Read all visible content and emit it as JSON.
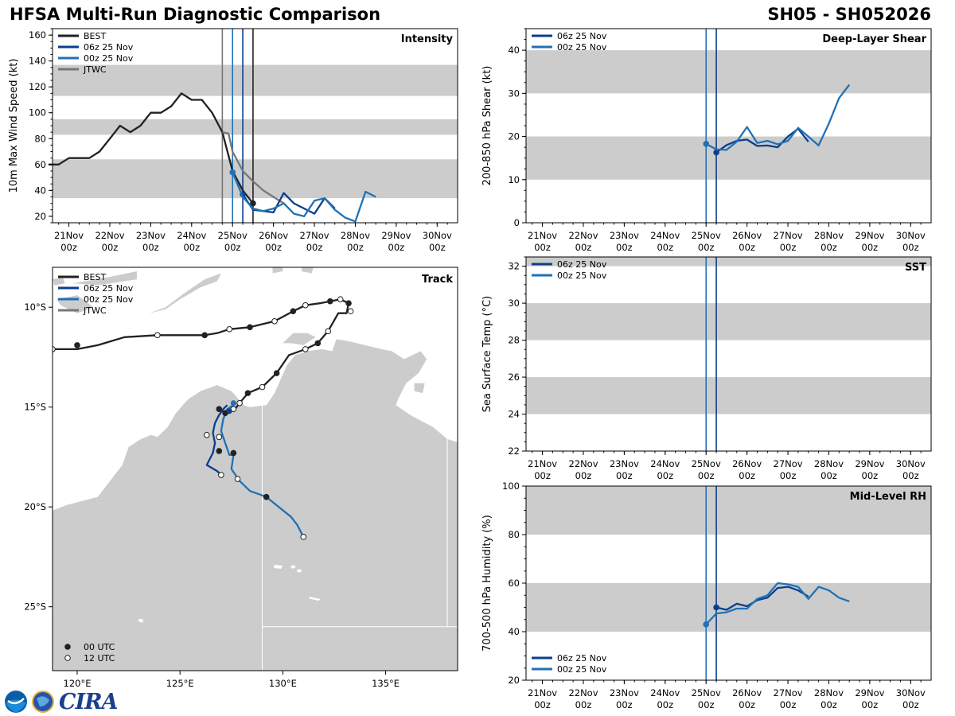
{
  "header": {
    "title": "HFSA Multi-Run Diagnostic Comparison",
    "storm": "SH05 - SH052026"
  },
  "logos": {
    "noaa": "NOAA",
    "cira": "CIRA"
  },
  "colors": {
    "best": "#222222",
    "run06": "#0b3f8c",
    "run00": "#2171b5",
    "jtwc": "#777777",
    "band": "#cccccc",
    "land": "#cccccc"
  },
  "time_axis": {
    "labels": [
      "21Nov",
      "22Nov",
      "23Nov",
      "24Nov",
      "25Nov",
      "26Nov",
      "27Nov",
      "28Nov",
      "29Nov",
      "30Nov"
    ],
    "sub": "00z",
    "range": [
      20.6,
      30.5
    ]
  },
  "chart_data": [
    {
      "id": "intensity",
      "type": "line",
      "title": "Intensity",
      "ylabel": "10m Max Wind Speed (kt)",
      "ylim": [
        15,
        165
      ],
      "yticks": [
        20,
        40,
        60,
        80,
        100,
        120,
        140,
        160
      ],
      "bands": [
        [
          34,
          64
        ],
        [
          83,
          95
        ],
        [
          113,
          137
        ]
      ],
      "vlines": [
        {
          "x": 24.75,
          "color": "jtwc"
        },
        {
          "x": 25.0,
          "color": "run00"
        },
        {
          "x": 25.25,
          "color": "run06"
        },
        {
          "x": 25.5,
          "color": "best"
        }
      ],
      "legend": [
        "BEST",
        "06z 25 Nov",
        "00z 25 Nov",
        "JTWC"
      ],
      "series": [
        {
          "name": "BEST",
          "color": "best",
          "x": [
            20.5,
            20.75,
            21,
            21.25,
            21.5,
            21.75,
            22,
            22.25,
            22.5,
            22.75,
            23,
            23.25,
            23.5,
            23.75,
            24,
            24.25,
            24.5,
            24.75,
            25,
            25.25,
            25.5
          ],
          "y": [
            60,
            60,
            65,
            65,
            65,
            70,
            80,
            90,
            85,
            90,
            100,
            100,
            105,
            115,
            110,
            110,
            100,
            85,
            55,
            40,
            30
          ],
          "marker": 25.5
        },
        {
          "name": "JTWC",
          "color": "jtwc",
          "x": [
            24.75,
            24.9,
            25,
            25.25,
            25.5,
            25.75,
            26,
            26.25
          ],
          "y": [
            85,
            84,
            70,
            55,
            47,
            40,
            35,
            30
          ]
        },
        {
          "name": "06z 25 Nov",
          "color": "run06",
          "x": [
            25.25,
            25.5,
            25.75,
            26,
            26.25,
            26.5,
            26.75,
            27,
            27.25,
            27.5
          ],
          "y": [
            37,
            25,
            24,
            23,
            38,
            30,
            26,
            22,
            34,
            26
          ],
          "marker": 25.25
        },
        {
          "name": "00z 25 Nov",
          "color": "run00",
          "x": [
            25,
            25.25,
            25.5,
            25.75,
            26,
            26.25,
            26.5,
            26.75,
            27,
            27.25,
            27.5,
            27.75,
            28,
            28.25,
            28.5
          ],
          "y": [
            54,
            35,
            26,
            24,
            26,
            30,
            22,
            20,
            32,
            34,
            25,
            19,
            16,
            39,
            35
          ],
          "marker": 25
        }
      ]
    },
    {
      "id": "shear",
      "type": "line",
      "title": "Deep-Layer Shear",
      "ylabel": "200-850 hPa Shear (kt)",
      "ylim": [
        0,
        45
      ],
      "yticks": [
        0,
        10,
        20,
        30,
        40
      ],
      "bands": [
        [
          10,
          20
        ],
        [
          30,
          40
        ]
      ],
      "vlines": [
        {
          "x": 25.0,
          "color": "run00"
        },
        {
          "x": 25.25,
          "color": "run06"
        }
      ],
      "legend": [
        "06z 25 Nov",
        "00z 25 Nov"
      ],
      "series": [
        {
          "name": "06z 25 Nov",
          "color": "run06",
          "x": [
            25.25,
            25.5,
            25.75,
            26,
            26.25,
            26.5,
            26.75,
            27,
            27.25,
            27.5
          ],
          "y": [
            16.3,
            18,
            19,
            19.3,
            17.8,
            17.9,
            17.5,
            20,
            21.8,
            18.8
          ],
          "marker": 25.25
        },
        {
          "name": "00z 25 Nov",
          "color": "run00",
          "x": [
            25,
            25.25,
            25.5,
            25.75,
            26,
            26.25,
            26.5,
            26.75,
            27,
            27.25,
            27.5,
            27.75,
            28,
            28.25,
            28.5
          ],
          "y": [
            18.3,
            17,
            16.9,
            18.8,
            22.2,
            18.5,
            19,
            18.2,
            19,
            22,
            20,
            17.9,
            23,
            28.9,
            32
          ],
          "marker": 25
        }
      ]
    },
    {
      "id": "sst",
      "type": "line",
      "title": "SST",
      "ylabel": "Sea Surface Temp (°C)",
      "ylim": [
        22,
        32.5
      ],
      "yticks": [
        22,
        24,
        26,
        28,
        30,
        32
      ],
      "bands": [
        [
          24,
          26
        ],
        [
          28,
          30
        ],
        [
          32,
          33
        ]
      ],
      "vlines": [
        {
          "x": 25.0,
          "color": "run00"
        },
        {
          "x": 25.25,
          "color": "run06"
        }
      ],
      "legend": [
        "06z 25 Nov",
        "00z 25 Nov"
      ],
      "series": []
    },
    {
      "id": "rh",
      "type": "line",
      "title": "Mid-Level RH",
      "ylabel": "700-500 hPa Humidity (%)",
      "ylim": [
        20,
        100
      ],
      "yticks": [
        20,
        40,
        60,
        80,
        100
      ],
      "bands": [
        [
          40,
          60
        ],
        [
          80,
          100
        ]
      ],
      "vlines": [
        {
          "x": 25.0,
          "color": "run00"
        },
        {
          "x": 25.25,
          "color": "run06"
        }
      ],
      "legend": [
        "06z 25 Nov",
        "00z 25 Nov"
      ],
      "legend_pos": "bottom-left",
      "series": [
        {
          "name": "06z 25 Nov",
          "color": "run06",
          "x": [
            25.25,
            25.5,
            25.75,
            26,
            26.25,
            26.5,
            26.75,
            27,
            27.25,
            27.5
          ],
          "y": [
            50,
            49,
            51.5,
            50.5,
            53,
            54,
            58,
            58.5,
            57,
            54.5
          ],
          "marker": 25.25
        },
        {
          "name": "00z 25 Nov",
          "color": "run00",
          "x": [
            25,
            25.25,
            25.5,
            25.75,
            26,
            26.25,
            26.5,
            26.75,
            27,
            27.25,
            27.5,
            27.75,
            28,
            28.25,
            28.5
          ],
          "y": [
            43,
            47.5,
            48,
            49.5,
            49.5,
            53.5,
            55,
            60,
            59.5,
            58.5,
            53.5,
            58.5,
            57,
            54,
            52.5
          ],
          "marker": 25
        }
      ]
    },
    {
      "id": "track",
      "type": "scatter",
      "title": "Track",
      "xlim": [
        118.8,
        138.5
      ],
      "ylim": [
        -28.2,
        -8.0
      ],
      "xticks": [
        120,
        125,
        130,
        135
      ],
      "xtick_labels": [
        "120°E",
        "125°E",
        "130°E",
        "135°E"
      ],
      "yticks": [
        -10,
        -15,
        -20,
        -25
      ],
      "ytick_labels": [
        "10°S",
        "15°S",
        "20°S",
        "25°S"
      ],
      "legend": [
        "BEST",
        "06z 25 Nov",
        "00z 25 Nov",
        "JTWC"
      ],
      "marker_legend": [
        "00 UTC",
        "12 UTC"
      ],
      "best": [
        [
          118.8,
          -12.1
        ],
        [
          120,
          -12.1
        ],
        [
          121,
          -11.9
        ],
        [
          122.3,
          -11.5
        ],
        [
          123.9,
          -11.4
        ],
        [
          125,
          -11.4
        ],
        [
          126.2,
          -11.4
        ],
        [
          126.8,
          -11.3
        ],
        [
          127.4,
          -11.1
        ],
        [
          128.4,
          -11
        ],
        [
          129.6,
          -10.7
        ],
        [
          130.5,
          -10.2
        ],
        [
          131.1,
          -9.9
        ],
        [
          131.8,
          -9.8
        ],
        [
          132.3,
          -9.7
        ],
        [
          132.8,
          -9.6
        ],
        [
          133.2,
          -9.8
        ],
        [
          133.1,
          -10.3
        ],
        [
          132.7,
          -10.3
        ],
        [
          132.2,
          -11.2
        ],
        [
          131.7,
          -11.8
        ],
        [
          131.1,
          -12.1
        ],
        [
          130.3,
          -12.4
        ],
        [
          129.7,
          -13.3
        ],
        [
          129,
          -14
        ],
        [
          128.3,
          -14.3
        ],
        [
          127.9,
          -14.8
        ],
        [
          127.6,
          -15.2
        ],
        [
          127.4,
          -15.1
        ],
        [
          127.2,
          -15.3
        ],
        [
          126.9,
          -15.1
        ]
      ],
      "best_00": [
        [
          120,
          -11.9
        ],
        [
          126.2,
          -11.4
        ],
        [
          128.4,
          -11
        ],
        [
          130.5,
          -10.2
        ],
        [
          132.3,
          -9.7
        ],
        [
          133.2,
          -9.8
        ],
        [
          131.7,
          -11.8
        ],
        [
          129.7,
          -13.3
        ],
        [
          128.3,
          -14.3
        ],
        [
          127.2,
          -15.3
        ],
        [
          126.9,
          -15.1
        ]
      ],
      "best_12": [
        [
          118.8,
          -12.1
        ],
        [
          123.9,
          -11.4
        ],
        [
          127.4,
          -11.1
        ],
        [
          129.6,
          -10.7
        ],
        [
          131.1,
          -9.9
        ],
        [
          132.8,
          -9.6
        ],
        [
          133.3,
          -10.2
        ],
        [
          132.2,
          -11.2
        ],
        [
          131.1,
          -12.1
        ],
        [
          129,
          -14
        ],
        [
          127.9,
          -14.8
        ]
      ],
      "run06": [
        [
          127.3,
          -14.9
        ],
        [
          127.1,
          -15.1
        ],
        [
          126.9,
          -15.4
        ],
        [
          126.7,
          -15.8
        ],
        [
          126.6,
          -16.3
        ],
        [
          126.7,
          -16.8
        ],
        [
          126.6,
          -17.3
        ],
        [
          126.3,
          -17.9
        ],
        [
          126.8,
          -18.2
        ],
        [
          127,
          -18.4
        ]
      ],
      "run06_00": [
        [
          126.9,
          -17.2
        ],
        [
          127.6,
          -17.3
        ]
      ],
      "run06_12": [
        [
          126.3,
          -16.4
        ],
        [
          127,
          -18.4
        ]
      ],
      "run00": [
        [
          127.6,
          -14.9
        ],
        [
          127.3,
          -15.1
        ],
        [
          127.1,
          -15.6
        ],
        [
          127,
          -16.2
        ],
        [
          127.2,
          -16.8
        ],
        [
          127.4,
          -17.4
        ],
        [
          127.6,
          -17.4
        ],
        [
          127.5,
          -18.1
        ],
        [
          127.9,
          -18.7
        ],
        [
          128.4,
          -19.2
        ],
        [
          129.2,
          -19.5
        ],
        [
          129.8,
          -20
        ],
        [
          130.4,
          -20.5
        ],
        [
          130.7,
          -20.9
        ],
        [
          131,
          -21.5
        ]
      ],
      "run00_00": [
        [
          129.2,
          -19.5
        ]
      ],
      "run00_12": [
        [
          127.6,
          -15.1
        ],
        [
          126.9,
          -16.5
        ],
        [
          127.8,
          -18.6
        ],
        [
          131,
          -21.5
        ]
      ],
      "marker_06": [
        127.4,
        -15.2
      ],
      "marker_00": [
        127.6,
        -14.8
      ]
    }
  ]
}
